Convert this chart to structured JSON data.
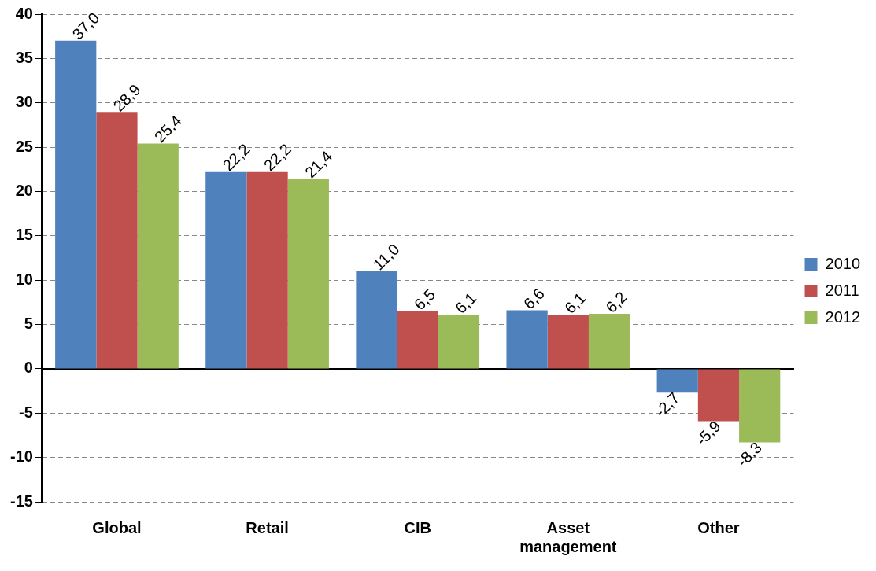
{
  "chart_data": {
    "type": "bar",
    "categories": [
      "Global",
      "Retail",
      "CIB",
      "Asset management",
      "Other"
    ],
    "series": [
      {
        "name": "2010",
        "color": "#4f81bd",
        "values": [
          37.0,
          22.2,
          11.0,
          6.6,
          -2.7
        ],
        "value_labels": [
          "37,0",
          "22,2",
          "11,0",
          "6,6",
          "-2,7"
        ]
      },
      {
        "name": "2011",
        "color": "#c0504d",
        "values": [
          28.9,
          22.2,
          6.5,
          6.1,
          -5.9
        ],
        "value_labels": [
          "28,9",
          "22,2",
          "6,5",
          "6,1",
          "-5,9"
        ]
      },
      {
        "name": "2012",
        "color": "#9bbb59",
        "values": [
          25.4,
          21.4,
          6.1,
          6.2,
          -8.3
        ],
        "value_labels": [
          "25,4",
          "21,4",
          "6,1",
          "6,2",
          "-8,3"
        ]
      }
    ],
    "ylim": [
      -15,
      40
    ],
    "yticks": [
      -15,
      -10,
      -5,
      0,
      5,
      10,
      15,
      20,
      25,
      30,
      35,
      40
    ],
    "grid": "y",
    "legend": "right"
  }
}
